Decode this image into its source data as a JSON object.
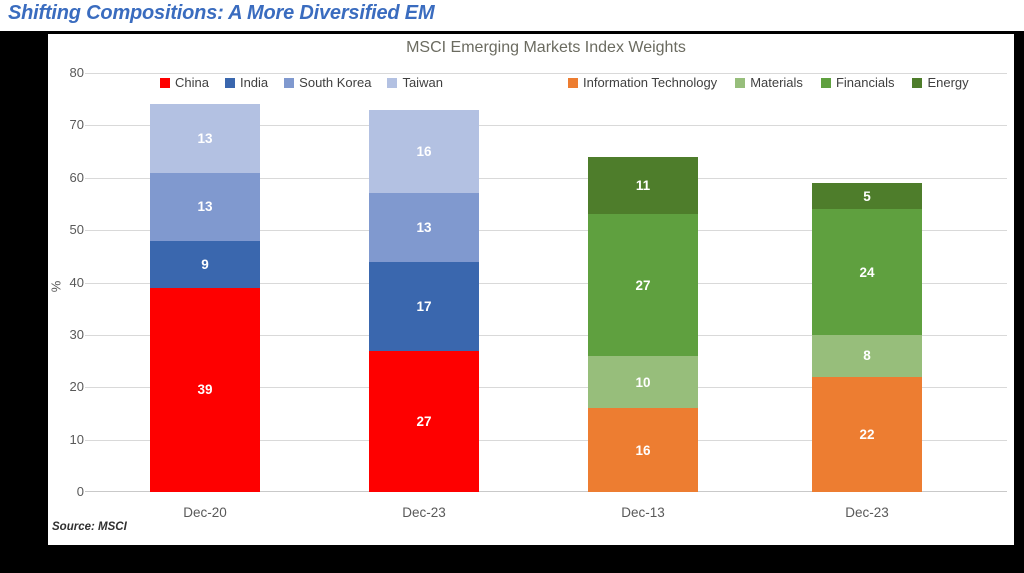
{
  "page_title": "Shifting Compositions: A More Diversified EM",
  "chart": {
    "title": "MSCI Emerging Markets Index Weights",
    "y_axis_label": "%",
    "source": "Source: MSCI"
  },
  "colors": {
    "page_title": "#3A6CBF",
    "chart_title": "#6B6B60",
    "axis_text": "#595959",
    "legend_text": "#404040",
    "gridline": "#D9D9D9",
    "bar_label": "#FFFFFF",
    "frame": "#000000"
  },
  "chart_data": {
    "type": "bar",
    "stacked": true,
    "title": "MSCI Emerging Markets Index Weights",
    "ylabel": "%",
    "ylim": [
      0,
      80
    ],
    "yticks": [
      0,
      10,
      20,
      30,
      40,
      50,
      60,
      70,
      80
    ],
    "grid": true,
    "legend_position": "top",
    "legend_groups": [
      {
        "name": "countries",
        "entries": [
          "China",
          "India",
          "South Korea",
          "Taiwan"
        ]
      },
      {
        "name": "sectors",
        "entries": [
          "Information Technology",
          "Materials",
          "Financials",
          "Energy"
        ]
      }
    ],
    "series_colors": {
      "China": "#FE0000",
      "India": "#3A67AE",
      "South Korea": "#8099CF",
      "Taiwan": "#B3C1E2",
      "Information Technology": "#ED7D31",
      "Materials": "#97BE7B",
      "Financials": "#5FA03F",
      "Energy": "#4E7D2B"
    },
    "bars": [
      {
        "category": "Dec-20",
        "segments": [
          {
            "series": "China",
            "value": 39
          },
          {
            "series": "India",
            "value": 9
          },
          {
            "series": "South Korea",
            "value": 13
          },
          {
            "series": "Taiwan",
            "value": 13
          }
        ]
      },
      {
        "category": "Dec-23",
        "segments": [
          {
            "series": "China",
            "value": 27
          },
          {
            "series": "India",
            "value": 17
          },
          {
            "series": "South Korea",
            "value": 13
          },
          {
            "series": "Taiwan",
            "value": 16
          }
        ]
      },
      {
        "category": "Dec-13",
        "segments": [
          {
            "series": "Information Technology",
            "value": 16
          },
          {
            "series": "Materials",
            "value": 10
          },
          {
            "series": "Financials",
            "value": 27
          },
          {
            "series": "Energy",
            "value": 11
          }
        ]
      },
      {
        "category": "Dec-23",
        "segments": [
          {
            "series": "Information Technology",
            "value": 22
          },
          {
            "series": "Materials",
            "value": 8
          },
          {
            "series": "Financials",
            "value": 24
          },
          {
            "series": "Energy",
            "value": 5
          }
        ]
      }
    ]
  }
}
